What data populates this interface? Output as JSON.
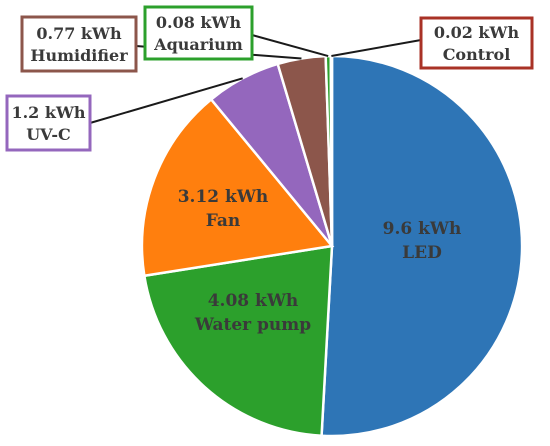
{
  "chart_data": {
    "type": "pie",
    "title": "",
    "unit": "kWh",
    "slices": [
      {
        "label": "LED",
        "value": 9.6,
        "value_text": "9.6 kWh",
        "color": "#2E75B6",
        "label_style": "inside"
      },
      {
        "label": "Water pump",
        "value": 4.08,
        "value_text": "4.08 kWh",
        "color": "#2CA02C",
        "label_style": "inside"
      },
      {
        "label": "Fan",
        "value": 3.12,
        "value_text": "3.12 kWh",
        "color": "#FF7F0E",
        "label_style": "inside"
      },
      {
        "label": "UV-C",
        "value": 1.2,
        "value_text": "1.2 kWh",
        "color": "#9467BD",
        "label_style": "callout",
        "box_color": "#9467BD"
      },
      {
        "label": "Humidifier",
        "value": 0.77,
        "value_text": "0.77 kWh",
        "color": "#8C564B",
        "label_style": "callout",
        "box_color": "#8C564B"
      },
      {
        "label": "Aquarium",
        "value": 0.08,
        "value_text": "0.08 kWh",
        "color": "#2CA02C",
        "label_style": "callout",
        "box_color": "#2CA02C"
      },
      {
        "label": "Control",
        "value": 0.02,
        "value_text": "0.02 kWh",
        "color": "#C0392B",
        "label_style": "callout",
        "box_color": "#A93226"
      }
    ],
    "legend": "none"
  }
}
